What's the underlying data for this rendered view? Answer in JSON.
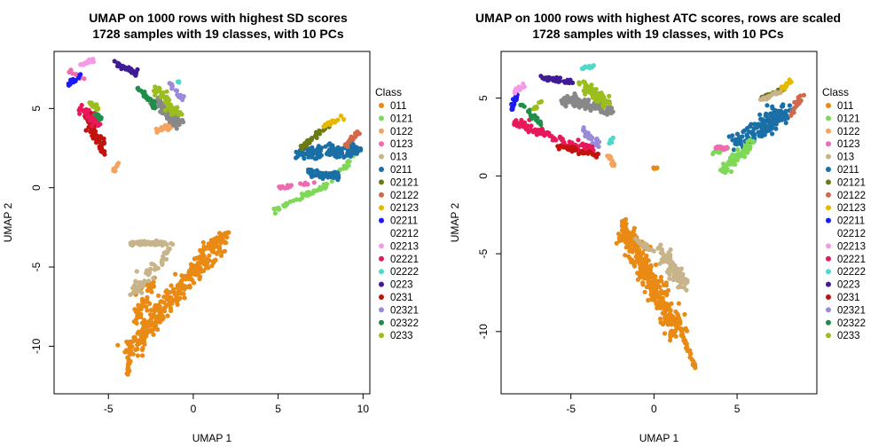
{
  "chart_data": [
    {
      "type": "scatter",
      "title": "UMAP on 1000 rows with highest SD scores",
      "subtitle": "1728 samples with 19 classes, with 10 PCs",
      "xlabel": "UMAP 1",
      "ylabel": "UMAP 2",
      "xlim": [
        -8.2,
        10.4
      ],
      "ylim": [
        -13.0,
        8.6
      ],
      "xticks": [
        -5,
        0,
        5,
        10
      ],
      "yticks": [
        -10,
        -5,
        0,
        5
      ],
      "grid": false,
      "legend": {
        "title": "Class",
        "placement": "right"
      },
      "clusters": [
        {
          "class": "011",
          "n": 320,
          "kind": "line",
          "from": [
            -3.8,
            -10.3
          ],
          "to": [
            1.6,
            -3.3
          ],
          "spread": 0.55
        },
        {
          "class": "011",
          "n": 50,
          "kind": "line",
          "from": [
            -3.5,
            -8.6
          ],
          "to": [
            -2.4,
            -5.7
          ],
          "spread": 0.45
        },
        {
          "class": "011",
          "n": 25,
          "kind": "line",
          "from": [
            -3.9,
            -12.0
          ],
          "to": [
            -3.7,
            -10.2
          ],
          "spread": 0.08
        },
        {
          "class": "011",
          "n": 12,
          "kind": "line",
          "from": [
            0.9,
            -3.4
          ],
          "to": [
            2.1,
            -2.8
          ],
          "spread": 0.06
        },
        {
          "class": "013",
          "n": 80,
          "kind": "line",
          "from": [
            -3.7,
            -3.5
          ],
          "to": [
            -1.6,
            -3.5
          ],
          "spread": 0.15
        },
        {
          "class": "013",
          "n": 60,
          "kind": "line",
          "from": [
            -3.5,
            -6.6
          ],
          "to": [
            -1.3,
            -3.7
          ],
          "spread": 0.3
        },
        {
          "class": "0121",
          "n": 50,
          "kind": "line",
          "from": [
            4.7,
            -1.4
          ],
          "to": [
            8.0,
            0.2
          ],
          "spread": 0.15
        },
        {
          "class": "0121",
          "n": 25,
          "kind": "line",
          "from": [
            8.2,
            0.4
          ],
          "to": [
            9.5,
            2.2
          ],
          "spread": 0.15
        },
        {
          "class": "0123",
          "n": 20,
          "kind": "line",
          "from": [
            5.0,
            0.0
          ],
          "to": [
            7.2,
            0.3
          ],
          "spread": 0.08
        },
        {
          "class": "0123",
          "n": 12,
          "kind": "line",
          "from": [
            -7.3,
            7.4
          ],
          "to": [
            -6.4,
            6.8
          ],
          "spread": 0.1
        },
        {
          "class": "0211",
          "n": 140,
          "kind": "line",
          "from": [
            6.3,
            2.2
          ],
          "to": [
            9.8,
            2.4
          ],
          "spread": 0.4
        },
        {
          "class": "0211",
          "n": 60,
          "kind": "line",
          "from": [
            6.8,
            1.0
          ],
          "to": [
            8.6,
            0.7
          ],
          "spread": 0.25
        },
        {
          "class": "02121",
          "n": 30,
          "kind": "line",
          "from": [
            6.3,
            2.5
          ],
          "to": [
            8.0,
            4.0
          ],
          "spread": 0.15
        },
        {
          "class": "02122",
          "n": 25,
          "kind": "line",
          "from": [
            9.0,
            2.6
          ],
          "to": [
            9.7,
            3.5
          ],
          "spread": 0.15
        },
        {
          "class": "02123",
          "n": 20,
          "kind": "line",
          "from": [
            7.4,
            3.8
          ],
          "to": [
            8.8,
            4.4
          ],
          "spread": 0.15
        },
        {
          "class": "0122",
          "n": 40,
          "kind": "line",
          "from": [
            -2.2,
            3.5
          ],
          "to": [
            -1.0,
            4.1
          ],
          "spread": 0.2
        },
        {
          "class": "0122",
          "n": 10,
          "kind": "line",
          "from": [
            -4.7,
            1.0
          ],
          "to": [
            -4.4,
            1.6
          ],
          "spread": 0.08
        },
        {
          "class": "0222",
          "n": 90,
          "kind": "line",
          "from": [
            -2.2,
            5.6
          ],
          "to": [
            -0.8,
            3.9
          ],
          "spread": 0.3
        },
        {
          "class": "0233",
          "n": 50,
          "kind": "line",
          "from": [
            -2.3,
            6.3
          ],
          "to": [
            -0.9,
            4.6
          ],
          "spread": 0.25
        },
        {
          "class": "0223",
          "n": 35,
          "kind": "line",
          "from": [
            -4.6,
            7.9
          ],
          "to": [
            -3.2,
            7.1
          ],
          "spread": 0.15
        },
        {
          "class": "02322",
          "n": 25,
          "kind": "line",
          "from": [
            -3.3,
            6.4
          ],
          "to": [
            -2.2,
            5.1
          ],
          "spread": 0.15
        },
        {
          "class": "02321",
          "n": 20,
          "kind": "line",
          "from": [
            -1.4,
            6.6
          ],
          "to": [
            -0.6,
            5.6
          ],
          "spread": 0.12
        },
        {
          "class": "02222",
          "n": 6,
          "kind": "line",
          "from": [
            -0.9,
            6.7
          ],
          "to": [
            -0.7,
            6.6
          ],
          "spread": 0.06
        },
        {
          "class": "0231",
          "n": 70,
          "kind": "line",
          "from": [
            -6.3,
            4.8
          ],
          "to": [
            -5.3,
            2.2
          ],
          "spread": 0.3
        },
        {
          "class": "02221",
          "n": 40,
          "kind": "line",
          "from": [
            -6.8,
            5.2
          ],
          "to": [
            -5.6,
            4.0
          ],
          "spread": 0.25
        },
        {
          "class": "02211",
          "n": 20,
          "kind": "line",
          "from": [
            -7.4,
            6.5
          ],
          "to": [
            -6.6,
            7.2
          ],
          "spread": 0.15
        },
        {
          "class": "02213",
          "n": 15,
          "kind": "line",
          "from": [
            -6.6,
            7.7
          ],
          "to": [
            -5.9,
            8.1
          ],
          "spread": 0.12
        },
        {
          "class": "02212",
          "n": 8,
          "kind": "line",
          "from": [
            -6.6,
            6.1
          ],
          "to": [
            -6.1,
            6.4
          ],
          "spread": 0.1
        },
        {
          "class": "0233",
          "n": 15,
          "kind": "line",
          "from": [
            -6.1,
            5.4
          ],
          "to": [
            -5.6,
            5.0
          ],
          "spread": 0.12
        },
        {
          "class": "02322",
          "n": 12,
          "kind": "line",
          "from": [
            -5.7,
            4.6
          ],
          "to": [
            -5.3,
            4.2
          ],
          "spread": 0.1
        }
      ]
    },
    {
      "type": "scatter",
      "title": "UMAP on 1000 rows with highest ATC scores, rows are scaled",
      "subtitle": "1728 samples with 19 classes, with 10 PCs",
      "xlabel": "UMAP 1",
      "ylabel": "UMAP 2",
      "xlim": [
        -9.2,
        9.8
      ],
      "ylim": [
        -14.0,
        8.0
      ],
      "xticks": [
        -5,
        0,
        5
      ],
      "yticks": [
        -10,
        -5,
        0,
        5
      ],
      "grid": false,
      "legend": {
        "title": "Class",
        "placement": "right"
      },
      "clusters": [
        {
          "class": "011",
          "n": 340,
          "kind": "line",
          "from": [
            -1.8,
            -3.4
          ],
          "to": [
            1.4,
            -10.0
          ],
          "spread": 0.6
        },
        {
          "class": "011",
          "n": 30,
          "kind": "line",
          "from": [
            1.6,
            -10.0
          ],
          "to": [
            2.5,
            -12.4
          ],
          "spread": 0.1
        },
        {
          "class": "011",
          "n": 20,
          "kind": "line",
          "from": [
            -1.9,
            -2.8
          ],
          "to": [
            -1.4,
            -4.2
          ],
          "spread": 0.15
        },
        {
          "class": "011",
          "n": 6,
          "kind": "line",
          "from": [
            -0.1,
            0.5
          ],
          "to": [
            0.2,
            0.5
          ],
          "spread": 0.06
        },
        {
          "class": "013",
          "n": 110,
          "kind": "line",
          "from": [
            0.4,
            -4.8
          ],
          "to": [
            1.8,
            -7.0
          ],
          "spread": 0.4
        },
        {
          "class": "013",
          "n": 20,
          "kind": "line",
          "from": [
            -1.1,
            -4.0
          ],
          "to": [
            -0.2,
            -4.8
          ],
          "spread": 0.15
        },
        {
          "class": "0211",
          "n": 160,
          "kind": "line",
          "from": [
            5.0,
            2.0
          ],
          "to": [
            8.0,
            4.3
          ],
          "spread": 0.55
        },
        {
          "class": "0121",
          "n": 70,
          "kind": "line",
          "from": [
            4.0,
            0.2
          ],
          "to": [
            6.0,
            2.2
          ],
          "spread": 0.3
        },
        {
          "class": "0121",
          "n": 15,
          "kind": "line",
          "from": [
            3.5,
            1.5
          ],
          "to": [
            4.5,
            1.8
          ],
          "spread": 0.1
        },
        {
          "class": "0123",
          "n": 20,
          "kind": "line",
          "from": [
            3.7,
            1.8
          ],
          "to": [
            4.5,
            1.8
          ],
          "spread": 0.1
        },
        {
          "class": "02121",
          "n": 30,
          "kind": "line",
          "from": [
            6.5,
            5.0
          ],
          "to": [
            7.8,
            5.6
          ],
          "spread": 0.15
        },
        {
          "class": "02123",
          "n": 15,
          "kind": "line",
          "from": [
            7.6,
            5.5
          ],
          "to": [
            8.2,
            6.1
          ],
          "spread": 0.12
        },
        {
          "class": "02122",
          "n": 25,
          "kind": "line",
          "from": [
            8.2,
            3.8
          ],
          "to": [
            8.9,
            5.2
          ],
          "spread": 0.15
        },
        {
          "class": "013",
          "n": 20,
          "kind": "line",
          "from": [
            6.4,
            4.9
          ],
          "to": [
            7.6,
            5.4
          ],
          "spread": 0.12
        },
        {
          "class": "0222",
          "n": 110,
          "kind": "line",
          "from": [
            -5.6,
            4.9
          ],
          "to": [
            -2.4,
            4.2
          ],
          "spread": 0.35
        },
        {
          "class": "0233",
          "n": 80,
          "kind": "line",
          "from": [
            -4.4,
            6.0
          ],
          "to": [
            -2.8,
            4.6
          ],
          "spread": 0.3
        },
        {
          "class": "0223",
          "n": 40,
          "kind": "line",
          "from": [
            -6.8,
            6.3
          ],
          "to": [
            -4.8,
            6.0
          ],
          "spread": 0.15
        },
        {
          "class": "02222",
          "n": 15,
          "kind": "line",
          "from": [
            -4.4,
            6.9
          ],
          "to": [
            -3.6,
            7.1
          ],
          "spread": 0.1
        },
        {
          "class": "02321",
          "n": 30,
          "kind": "line",
          "from": [
            -4.3,
            3.0
          ],
          "to": [
            -3.3,
            2.0
          ],
          "spread": 0.2
        },
        {
          "class": "02221",
          "n": 90,
          "kind": "line",
          "from": [
            -8.4,
            3.4
          ],
          "to": [
            -3.6,
            1.6
          ],
          "spread": 0.3
        },
        {
          "class": "0231",
          "n": 40,
          "kind": "line",
          "from": [
            -5.8,
            1.9
          ],
          "to": [
            -3.3,
            1.3
          ],
          "spread": 0.15
        },
        {
          "class": "0122",
          "n": 20,
          "kind": "line",
          "from": [
            -2.8,
            1.3
          ],
          "to": [
            -2.4,
            0.7
          ],
          "spread": 0.12
        },
        {
          "class": "02211",
          "n": 15,
          "kind": "line",
          "from": [
            -8.6,
            4.2
          ],
          "to": [
            -8.2,
            5.3
          ],
          "spread": 0.12
        },
        {
          "class": "02213",
          "n": 15,
          "kind": "line",
          "from": [
            -8.5,
            5.4
          ],
          "to": [
            -7.8,
            5.8
          ],
          "spread": 0.12
        },
        {
          "class": "02322",
          "n": 20,
          "kind": "line",
          "from": [
            -8.0,
            4.6
          ],
          "to": [
            -6.8,
            3.4
          ],
          "spread": 0.15
        },
        {
          "class": "02212",
          "n": 8,
          "kind": "line",
          "from": [
            -6.6,
            4.3
          ],
          "to": [
            -6.1,
            4.5
          ],
          "spread": 0.1
        },
        {
          "class": "0233",
          "n": 10,
          "kind": "line",
          "from": [
            -7.2,
            4.3
          ],
          "to": [
            -6.7,
            4.8
          ],
          "spread": 0.1
        },
        {
          "class": "02222",
          "n": 8,
          "kind": "line",
          "from": [
            -2.7,
            2.1
          ],
          "to": [
            -2.4,
            2.5
          ],
          "spread": 0.08
        }
      ]
    }
  ],
  "legend_items": [
    {
      "label": "011",
      "color": "#E98A15"
    },
    {
      "label": "0121",
      "color": "#7ED957"
    },
    {
      "label": "0122",
      "color": "#F4A460"
    },
    {
      "label": "0123",
      "color": "#F06AB0"
    },
    {
      "label": "013",
      "color": "#C8B48A"
    },
    {
      "label": "0211",
      "color": "#1A6FA6"
    },
    {
      "label": "02121",
      "color": "#6B7A12"
    },
    {
      "label": "02122",
      "color": "#D2694A"
    },
    {
      "label": "02123",
      "color": "#E6B800"
    },
    {
      "label": "02211",
      "color": "#1A1AF5"
    },
    {
      "label": "02212",
      "color": "#FFFFFF"
    },
    {
      "label": "02213",
      "color": "#F59AE6"
    },
    {
      "label": "02221",
      "color": "#E8185A"
    },
    {
      "label": "02222",
      "color": "#4ED8C8"
    },
    {
      "label": "0223",
      "color": "#3F1C96"
    },
    {
      "label": "0231",
      "color": "#C2120E"
    },
    {
      "label": "02321",
      "color": "#9B8AD9"
    },
    {
      "label": "02322",
      "color": "#1E8F4A"
    },
    {
      "label": "0233",
      "color": "#9BBE1E"
    }
  ]
}
